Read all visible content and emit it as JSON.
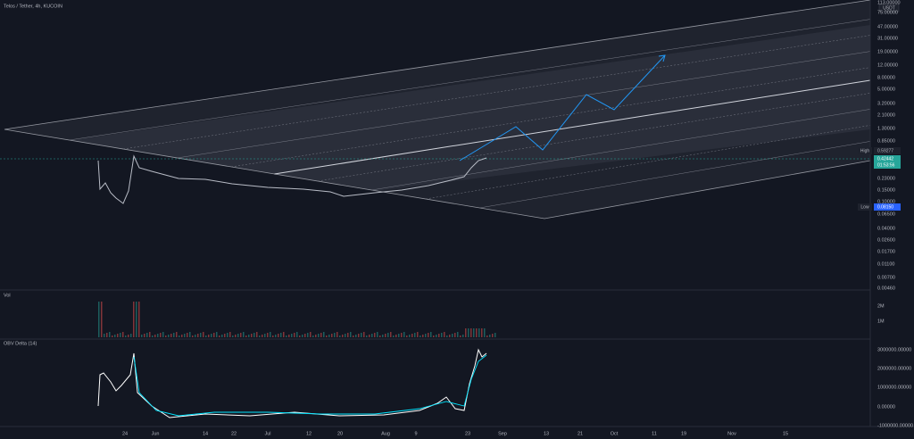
{
  "header": {
    "title": "Telos / Tether, 4h, KUCOIN"
  },
  "price_axis": {
    "unit": "USDT",
    "labels": [
      "113.00000",
      "75.00000",
      "47.00000",
      "31.00000",
      "19.00000",
      "12.00000",
      "8.00000",
      "5.00000",
      "3.20000",
      "2.10000",
      "1.30000",
      "0.85000",
      "0.23000",
      "0.15000",
      "0.10000",
      "0.06500",
      "0.04000",
      "0.02600",
      "0.01700",
      "0.01100",
      "0.00700",
      "0.00460"
    ]
  },
  "high": {
    "label": "High",
    "value": "0.59277"
  },
  "current": {
    "price": "0.42442",
    "countdown": "01:53:56"
  },
  "low": {
    "label": "Low",
    "value": "0.08150"
  },
  "volume_pane": {
    "title": "Vol",
    "labels": [
      "2M",
      "1M"
    ]
  },
  "obv_pane": {
    "title": "OBV Delta (14)",
    "labels": [
      "3000000.00000",
      "2000000.00000",
      "1000000.00000",
      "0.00000",
      "-1000000.00000"
    ]
  },
  "time_axis": {
    "labels": [
      "24",
      "Jun",
      "14",
      "22",
      "Jul",
      "12",
      "20",
      "Aug",
      "9",
      "23",
      "Sep",
      "13",
      "21",
      "Oct",
      "11",
      "19",
      "Nov",
      "15"
    ]
  }
}
